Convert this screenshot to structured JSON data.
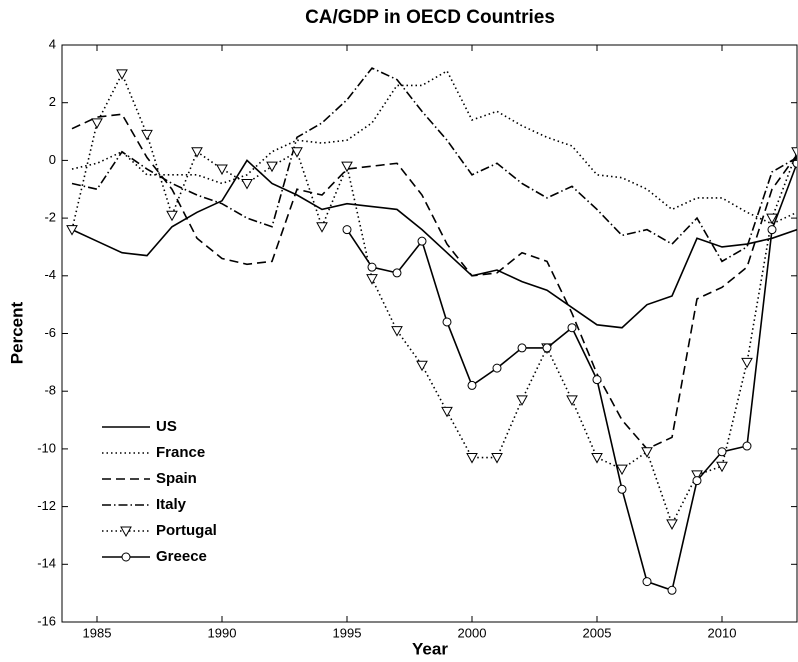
{
  "chart_data": {
    "type": "line",
    "title": "CA/GDP in OECD Countries",
    "x_label": "Year",
    "y_label": "Percent",
    "x": [
      1984,
      1985,
      1986,
      1987,
      1988,
      1989,
      1990,
      1991,
      1992,
      1993,
      1994,
      1995,
      1996,
      1997,
      1998,
      1999,
      2000,
      2001,
      2002,
      2003,
      2004,
      2005,
      2006,
      2007,
      2008,
      2009,
      2010,
      2011,
      2012,
      2013
    ],
    "xlim": [
      1983.6,
      2013
    ],
    "xticks": [
      1985,
      1990,
      1995,
      2000,
      2005,
      2010
    ],
    "ylim": [
      -16,
      4
    ],
    "yticks": [
      -16,
      -14,
      -12,
      -10,
      -8,
      -6,
      -4,
      -2,
      0,
      2,
      4
    ],
    "grid": false,
    "legend": "lower left",
    "series": [
      {
        "name": "US",
        "color": "#000000",
        "line_style": "solid",
        "marker": "none",
        "values": [
          -2.4,
          -2.8,
          -3.2,
          -3.3,
          -2.3,
          -1.8,
          -1.4,
          0.0,
          -0.8,
          -1.2,
          -1.7,
          -1.5,
          -1.6,
          -1.7,
          -2.4,
          -3.2,
          -4.0,
          -3.8,
          -4.2,
          -4.5,
          -5.1,
          -5.7,
          -5.8,
          -5.0,
          -4.7,
          -2.7,
          -3.0,
          -2.9,
          -2.7,
          -2.4
        ]
      },
      {
        "name": "France",
        "color": "#000000",
        "line_style": "dotted",
        "marker": "none",
        "values": [
          -0.3,
          -0.1,
          0.3,
          -0.5,
          -0.5,
          -0.5,
          -0.8,
          -0.5,
          0.3,
          0.7,
          0.6,
          0.7,
          1.3,
          2.6,
          2.6,
          3.1,
          1.4,
          1.7,
          1.2,
          0.8,
          0.5,
          -0.5,
          -0.6,
          -1.0,
          -1.7,
          -1.3,
          -1.3,
          -1.8,
          -2.2,
          -1.8
        ]
      },
      {
        "name": "Spain",
        "color": "#000000",
        "line_style": "dashed",
        "marker": "none",
        "values": [
          1.1,
          1.5,
          1.6,
          0.1,
          -1.0,
          -2.7,
          -3.4,
          -3.6,
          -3.5,
          -1.0,
          -1.2,
          -0.3,
          -0.2,
          -0.1,
          -1.2,
          -2.9,
          -4.0,
          -3.9,
          -3.2,
          -3.5,
          -5.3,
          -7.4,
          -9.0,
          -10.0,
          -9.6,
          -4.8,
          -4.4,
          -3.7,
          -1.0,
          0.2
        ]
      },
      {
        "name": "Italy",
        "color": "#000000",
        "line_style": "dashdot",
        "marker": "none",
        "values": [
          -0.8,
          -1.0,
          0.3,
          -0.3,
          -0.8,
          -1.2,
          -1.5,
          -2.0,
          -2.3,
          0.8,
          1.3,
          2.1,
          3.2,
          2.8,
          1.7,
          0.7,
          -0.5,
          -0.1,
          -0.8,
          -1.3,
          -0.9,
          -1.7,
          -2.6,
          -2.4,
          -2.9,
          -2.0,
          -3.5,
          -3.0,
          -0.4,
          0.1
        ]
      },
      {
        "name": "Portugal",
        "color": "#000000",
        "line_style": "dotted",
        "marker": "triangle-down",
        "values": [
          -2.4,
          1.3,
          3.0,
          0.9,
          -1.9,
          0.3,
          -0.3,
          -0.8,
          -0.2,
          0.3,
          -2.3,
          -0.2,
          -4.1,
          -5.9,
          -7.1,
          -8.7,
          -10.3,
          -10.3,
          -8.3,
          -6.5,
          -8.3,
          -10.3,
          -10.7,
          -10.1,
          -12.6,
          -10.9,
          -10.6,
          -7.0,
          -2.0,
          0.3
        ]
      },
      {
        "name": "Greece",
        "color": "#000000",
        "line_style": "solid",
        "marker": "circle",
        "values": [
          null,
          null,
          null,
          null,
          null,
          null,
          null,
          null,
          null,
          null,
          null,
          -2.4,
          -3.7,
          -3.9,
          -2.8,
          -5.6,
          -7.8,
          -7.2,
          -6.5,
          -6.5,
          -5.8,
          -7.6,
          -11.4,
          -14.6,
          -14.9,
          -11.1,
          -10.1,
          -9.9,
          -2.4,
          -0.1
        ]
      }
    ]
  }
}
